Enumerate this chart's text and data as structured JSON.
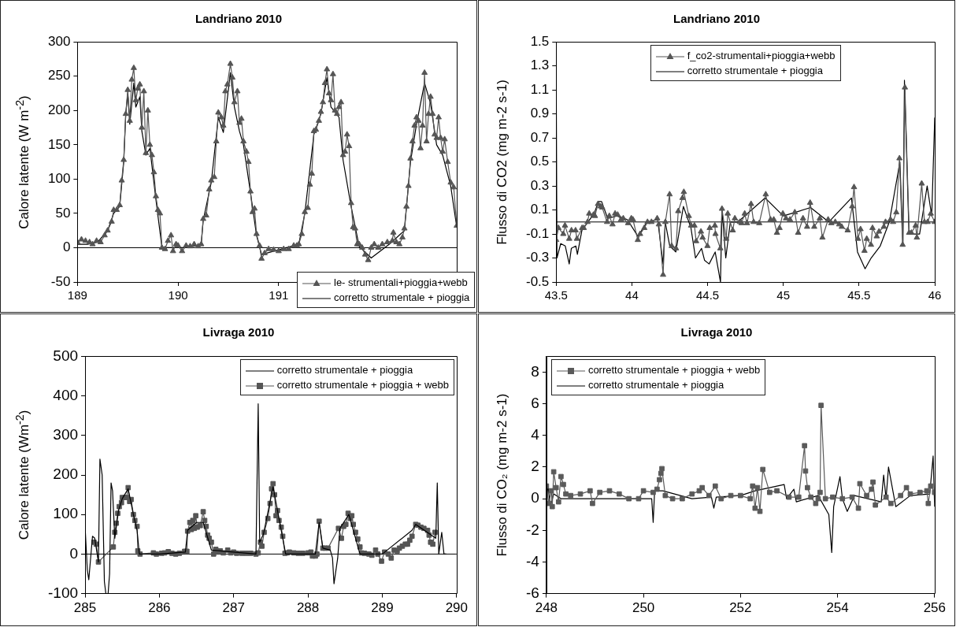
{
  "chart_data": [
    {
      "type": "line",
      "title": "Landriano 2010",
      "ylabel": "Calore latente (W m$^{-2}$)",
      "xlim": [
        189,
        192.77
      ],
      "xticks": [
        189,
        190,
        191
      ],
      "ylim": [
        -50,
        300
      ],
      "yticks": [
        -50,
        0,
        50,
        100,
        150,
        200,
        250,
        300
      ],
      "grid": false,
      "legend": "bottom right",
      "ref_lines": [
        {
          "axis": "y",
          "value": 0,
          "color": "#000000"
        }
      ],
      "series": [
        {
          "name": "le- strumentali+pioggia+webb",
          "color": "#555555",
          "marker": "triangle",
          "x": [
            189.0,
            189.04,
            189.08,
            189.12,
            189.15,
            189.19,
            189.23,
            189.27,
            189.3,
            189.34,
            189.36,
            189.39,
            189.42,
            189.44,
            189.46,
            189.48,
            189.5,
            189.52,
            189.54,
            189.56,
            189.58,
            189.6,
            189.62,
            189.64,
            189.66,
            189.68,
            189.7,
            189.72,
            189.74,
            189.76,
            189.78,
            189.8,
            189.82,
            189.84,
            189.87,
            189.9,
            189.93,
            189.95,
            189.98,
            190.0,
            190.04,
            190.08,
            190.12,
            190.16,
            190.2,
            190.23,
            190.25,
            190.28,
            190.31,
            190.33,
            190.36,
            190.38,
            190.4,
            190.43,
            190.45,
            190.47,
            190.49,
            190.52,
            190.54,
            190.56,
            190.59,
            190.61,
            190.63,
            190.65,
            190.68,
            190.7,
            190.72,
            190.74,
            190.76,
            190.78,
            190.81,
            190.83,
            190.86,
            190.9,
            190.95,
            191.0,
            191.05,
            191.1,
            191.15,
            191.18,
            191.2,
            191.23,
            191.26,
            191.29,
            191.31,
            191.33,
            191.35,
            191.37,
            191.4,
            191.42,
            191.44,
            191.46,
            191.48,
            191.5,
            191.52,
            191.54,
            191.56,
            191.58,
            191.6,
            191.62,
            191.64,
            191.66,
            191.68,
            191.7,
            191.72,
            191.74,
            191.76,
            191.78,
            191.8,
            191.83,
            191.86,
            191.89,
            191.92,
            191.95,
            191.99,
            192.03,
            192.08,
            192.13,
            192.14,
            192.17,
            192.2,
            192.23,
            192.25,
            192.27,
            192.29,
            192.31,
            192.33,
            192.35,
            192.37,
            192.39,
            192.41,
            192.43,
            192.45,
            192.47,
            192.49,
            192.51,
            192.53,
            192.55,
            192.57,
            192.59,
            192.61,
            192.63,
            192.65,
            192.68,
            192.71,
            192.74,
            192.77
          ],
          "values": [
            8,
            12,
            10,
            8,
            5,
            10,
            8,
            18,
            25,
            38,
            55,
            55,
            62,
            98,
            128,
            195,
            230,
            185,
            245,
            262,
            215,
            232,
            238,
            175,
            228,
            138,
            200,
            150,
            135,
            110,
            75,
            55,
            50,
            0,
            -2,
            10,
            18,
            -5,
            5,
            3,
            -5,
            3,
            2,
            5,
            2,
            5,
            42,
            47,
            85,
            98,
            103,
            155,
            197,
            190,
            178,
            228,
            238,
            268,
            248,
            212,
            228,
            182,
            188,
            155,
            140,
            125,
            82,
            52,
            57,
            20,
            3,
            -16,
            -8,
            -2,
            -3,
            -5,
            -2,
            -2,
            3,
            3,
            5,
            20,
            52,
            58,
            92,
            108,
            170,
            172,
            185,
            198,
            212,
            240,
            260,
            225,
            215,
            253,
            200,
            195,
            205,
            212,
            135,
            140,
            165,
            148,
            65,
            30,
            28,
            5,
            5,
            0,
            -10,
            -18,
            0,
            5,
            0,
            5,
            8,
            10,
            22,
            8,
            5,
            15,
            28,
            60,
            90,
            130,
            155,
            178,
            190,
            185,
            145,
            178,
            255,
            155,
            195,
            220,
            195,
            165,
            160,
            190,
            160,
            140,
            158,
            125,
            95,
            88,
            32
          ]
        },
        {
          "name": "corretto strumentale + pioggia",
          "color": "#000000",
          "marker": "none",
          "x": [
            189.0,
            189.1,
            189.2,
            189.3,
            189.36,
            189.42,
            189.46,
            189.48,
            189.5,
            189.52,
            189.56,
            189.58,
            189.62,
            189.64,
            189.68,
            189.72,
            189.78,
            189.84,
            189.95,
            190.1,
            190.23,
            190.25,
            190.33,
            190.4,
            190.45,
            190.52,
            190.56,
            190.61,
            190.65,
            190.72,
            190.78,
            190.83,
            191.0,
            191.2,
            191.26,
            191.35,
            191.42,
            191.48,
            191.52,
            191.56,
            191.6,
            191.64,
            191.72,
            191.8,
            191.92,
            192.1,
            192.25,
            192.31,
            192.37,
            192.45,
            192.51,
            192.57,
            192.63,
            192.71,
            192.77
          ],
          "values": [
            5,
            5,
            8,
            25,
            50,
            60,
            125,
            195,
            225,
            180,
            240,
            205,
            220,
            170,
            135,
            145,
            70,
            0,
            0,
            0,
            5,
            40,
            95,
            190,
            168,
            255,
            205,
            170,
            150,
            80,
            18,
            -10,
            -3,
            5,
            50,
            165,
            195,
            248,
            205,
            198,
            190,
            128,
            60,
            2,
            -15,
            5,
            25,
            125,
            180,
            240,
            210,
            150,
            135,
            90,
            30
          ]
        }
      ]
    },
    {
      "type": "line",
      "title": "Landriano 2010",
      "ylabel": "Flusso di CO2 (mg m-2 s-1)",
      "xlim": [
        43.5,
        46
      ],
      "xticks": [
        43.5,
        44,
        44.5,
        45,
        45.5,
        46
      ],
      "ylim": [
        -0.5,
        1.5
      ],
      "yticks": [
        -0.5,
        -0.3,
        -0.1,
        0.1,
        0.3,
        0.5,
        0.7,
        0.9,
        1.1,
        1.3,
        1.5
      ],
      "grid": false,
      "legend": "top",
      "ref_lines": [
        {
          "axis": "y",
          "value": 0,
          "color": "#000000"
        }
      ],
      "series": [
        {
          "name": "f_co2-strumentali+pioggia+webb",
          "color": "#555555",
          "marker": "triangle",
          "x": [
            43.5,
            43.515,
            43.547,
            43.558,
            43.586,
            43.601,
            43.628,
            43.637,
            43.671,
            43.682,
            43.707,
            43.718,
            43.746,
            43.756,
            43.776,
            43.793,
            43.804,
            43.836,
            43.851,
            43.872,
            43.889,
            43.906,
            43.928,
            43.943,
            43.975,
            43.996,
            44.007,
            44.039,
            44.054,
            44.082,
            44.103,
            44.129,
            44.167,
            44.178,
            44.206,
            44.221,
            44.249,
            44.263,
            44.291,
            44.306,
            44.334,
            44.343,
            44.376,
            44.391,
            44.413,
            44.424,
            44.456,
            44.467,
            44.499,
            44.514,
            44.548,
            44.552,
            44.584,
            44.595,
            44.623,
            44.633,
            44.666,
            44.68,
            44.713,
            44.724,
            44.745,
            44.76,
            44.787,
            44.804,
            44.841,
            44.884,
            44.916,
            44.937,
            44.958,
            44.975,
            44.997,
            45.018,
            45.044,
            45.076,
            45.098,
            45.13,
            45.157,
            45.177,
            45.204,
            45.241,
            45.258,
            45.296,
            45.317,
            45.343,
            45.369,
            45.386,
            45.425,
            45.455,
            45.467,
            45.493,
            45.51,
            45.536,
            45.551,
            45.579,
            45.589,
            45.617,
            45.632,
            45.664,
            45.675,
            45.708,
            45.725,
            45.746,
            45.767,
            45.788,
            45.803,
            45.831,
            45.846,
            45.874,
            45.882,
            45.914,
            45.932,
            45.953,
            45.974,
            46.0
          ],
          "values": [
            -0.15,
            -0.05,
            -0.1,
            -0.03,
            -0.14,
            -0.07,
            -0.07,
            -0.14,
            -0.05,
            -0.05,
            0,
            0.07,
            0.06,
            0.05,
            0.15,
            0.13,
            0.12,
            0,
            0.05,
            -0.02,
            0.07,
            0.06,
            0.02,
            0.03,
            -0.01,
            0.03,
            0.02,
            -0.15,
            -0.1,
            -0.05,
            0,
            0,
            0.03,
            -0.02,
            -0.44,
            0,
            0.23,
            -0.2,
            -0.22,
            0.09,
            0.2,
            0.25,
            0.05,
            -0.03,
            -0.03,
            -0.16,
            -0.08,
            -0.13,
            -0.2,
            -0.05,
            -0.03,
            -0.1,
            -0.22,
            0.11,
            -0.14,
            0.07,
            -0.07,
            0.03,
            0,
            -0.01,
            0.07,
            -0.01,
            0.15,
            0,
            -0.01,
            0.23,
            0.02,
            0.02,
            -0.09,
            -0.05,
            0.07,
            0.03,
            0.02,
            0.08,
            -0.09,
            0.03,
            -0.04,
            0.16,
            -0.04,
            0.03,
            -0.13,
            0.02,
            -0.01,
            0,
            -0.02,
            -0.04,
            -0.07,
            0.13,
            0.29,
            -0.14,
            -0.06,
            -0.24,
            -0.14,
            -0.19,
            -0.05,
            -0.12,
            -0.08,
            -0.04,
            0,
            0.02,
            0,
            0.08,
            0.53,
            -0.19,
            1.12,
            -0.09,
            -0.09,
            -0.03,
            -0.13,
            0.32,
            0,
            0,
            0.07,
            0
          ]
        },
        {
          "name": "corretto strumentale + pioggia",
          "color": "#000000",
          "marker": "none",
          "x": [
            43.5,
            43.505,
            43.53,
            43.56,
            43.586,
            43.6,
            43.63,
            43.64,
            43.67,
            43.71,
            43.75,
            43.78,
            43.8,
            43.84,
            43.9,
            43.97,
            44.04,
            44.1,
            44.17,
            44.206,
            44.22,
            44.25,
            44.29,
            44.34,
            44.39,
            44.42,
            44.46,
            44.48,
            44.51,
            44.55,
            44.585,
            44.595,
            44.62,
            44.65,
            44.7,
            44.88,
            45.0,
            45.18,
            45.3,
            45.45,
            45.49,
            45.54,
            45.58,
            45.64,
            45.7,
            45.77,
            45.79,
            45.8,
            45.83,
            45.9,
            45.95,
            45.98,
            46.0
          ],
          "values": [
            1.25,
            -0.3,
            -0.18,
            -0.2,
            -0.35,
            -0.22,
            -0.2,
            -0.27,
            -0.07,
            0,
            0.07,
            0.17,
            0.17,
            0.03,
            0.05,
            0.02,
            -0.12,
            0,
            0.02,
            -0.35,
            0,
            -0.2,
            -0.25,
            0.13,
            -0.05,
            -0.3,
            -0.22,
            -0.32,
            -0.35,
            -0.25,
            -0.5,
            0.1,
            -0.3,
            0,
            0,
            0.2,
            0.05,
            0.12,
            0,
            0.2,
            -0.25,
            -0.39,
            -0.3,
            -0.2,
            0,
            0.5,
            -0.2,
            1.18,
            -0.1,
            -0.1,
            0.3,
            0.05,
            0.87
          ]
        }
      ]
    },
    {
      "type": "line",
      "title": "Livraga 2010",
      "ylabel": "Calore latente (Wm$^{-2}$)",
      "xlim": [
        285,
        290
      ],
      "xticks": [
        285,
        286,
        287,
        288,
        289,
        290
      ],
      "ylim": [
        -100,
        500
      ],
      "yticks": [
        -100,
        0,
        100,
        200,
        300,
        400,
        500
      ],
      "grid": false,
      "legend": "top right",
      "ref_lines": [
        {
          "axis": "y",
          "value": 0,
          "color": "#000000"
        }
      ],
      "series": [
        {
          "name": "corretto strumentale + pioggia",
          "color": "#000000",
          "marker": "none",
          "x": [
            285.0,
            285.03,
            285.05,
            285.1,
            285.13,
            285.18,
            285.2,
            285.23,
            285.26,
            285.28,
            285.31,
            285.33,
            285.35,
            285.37,
            285.4,
            285.45,
            285.5,
            285.58,
            285.65,
            285.7,
            285.73,
            285.76,
            286.0,
            286.35,
            286.38,
            286.5,
            286.59,
            286.7,
            287.0,
            287.3,
            287.33,
            287.35,
            287.4,
            287.53,
            287.66,
            287.7,
            288.1,
            288.15,
            288.2,
            288.3,
            288.33,
            288.35,
            288.4,
            288.43,
            288.55,
            288.7,
            289.0,
            289.4,
            289.45,
            289.72,
            289.74,
            289.76,
            289.8,
            289.83,
            289.86
          ],
          "values": [
            70,
            -40,
            -65,
            45,
            40,
            -20,
            240,
            200,
            -70,
            -100,
            -100,
            -50,
            180,
            160,
            40,
            110,
            140,
            165,
            100,
            60,
            0,
            0,
            0,
            5,
            60,
            80,
            80,
            10,
            5,
            0,
            380,
            30,
            50,
            170,
            40,
            0,
            0,
            80,
            15,
            10,
            -10,
            -75,
            -10,
            65,
            100,
            0,
            0,
            60,
            75,
            40,
            180,
            0,
            55,
            0,
            0
          ]
        },
        {
          "name": "corretto strumentale + pioggia + webb",
          "color": "#555555",
          "marker": "square",
          "x": [
            285.12,
            285.15,
            285.18,
            285.38,
            285.4,
            285.42,
            285.44,
            285.46,
            285.49,
            285.5,
            285.54,
            285.56,
            285.58,
            285.6,
            285.62,
            285.65,
            285.67,
            285.7,
            285.71,
            285.74,
            285.92,
            285.96,
            286.03,
            286.07,
            286.12,
            286.17,
            286.22,
            286.27,
            286.34,
            286.37,
            286.38,
            286.41,
            286.43,
            286.45,
            286.47,
            286.49,
            286.51,
            286.55,
            286.59,
            286.61,
            286.63,
            286.65,
            286.67,
            286.7,
            286.73,
            286.76,
            286.79,
            286.82,
            286.86,
            286.92,
            286.96,
            287.0,
            287.04,
            287.11,
            287.17,
            287.23,
            287.3,
            287.33,
            287.36,
            287.38,
            287.41,
            287.46,
            287.49,
            287.51,
            287.53,
            287.55,
            287.57,
            287.59,
            287.61,
            287.64,
            287.66,
            287.69,
            287.72,
            287.75,
            287.81,
            287.87,
            287.93,
            288.0,
            288.04,
            288.06,
            288.1,
            288.12,
            288.15,
            288.2,
            288.23,
            288.27,
            288.41,
            288.45,
            288.48,
            288.51,
            288.54,
            288.57,
            288.59,
            288.61,
            288.64,
            288.67,
            288.7,
            288.72,
            288.76,
            288.82,
            288.86,
            288.91,
            288.94,
            288.99,
            289.03,
            289.08,
            289.12,
            289.16,
            289.2,
            289.23,
            289.27,
            289.31,
            289.34,
            289.37,
            289.4,
            289.45,
            289.48,
            289.52,
            289.56,
            289.61,
            289.63,
            289.65,
            289.68,
            289.71
          ],
          "values": [
            30,
            25,
            -20,
            18,
            55,
            78,
            103,
            120,
            130,
            143,
            143,
            143,
            168,
            133,
            138,
            100,
            85,
            70,
            8,
            0,
            3,
            0,
            2,
            3,
            6,
            2,
            0,
            2,
            7,
            7,
            58,
            80,
            62,
            85,
            65,
            97,
            68,
            72,
            107,
            85,
            70,
            48,
            40,
            30,
            0,
            12,
            5,
            8,
            3,
            10,
            3,
            5,
            2,
            2,
            2,
            2,
            0,
            3,
            30,
            20,
            55,
            90,
            128,
            165,
            178,
            150,
            97,
            110,
            85,
            68,
            45,
            2,
            3,
            5,
            3,
            2,
            2,
            3,
            5,
            -5,
            -5,
            0,
            83,
            15,
            15,
            15,
            65,
            40,
            70,
            75,
            103,
            90,
            97,
            75,
            55,
            38,
            18,
            3,
            2,
            0,
            -3,
            10,
            0,
            -18,
            5,
            0,
            -10,
            10,
            8,
            15,
            20,
            25,
            25,
            35,
            45,
            75,
            73,
            68,
            65,
            60,
            48,
            30,
            25,
            55
          ]
        }
      ]
    },
    {
      "type": "line",
      "title": "Livraga 2010",
      "ylabel": "Flusso di CO₂ (mg m-2 s-1)",
      "xlim": [
        248,
        256
      ],
      "xticks": [
        248,
        250,
        252,
        254,
        256
      ],
      "ylim": [
        -6,
        9
      ],
      "yticks": [
        -6,
        -4,
        -2,
        0,
        2,
        4,
        6,
        8
      ],
      "grid": false,
      "legend": "top left",
      "series": [
        {
          "name": "corretto strumentale + pioggia + webb",
          "color": "#5a5a5a",
          "marker": "square",
          "x": [
            248.0,
            248.05,
            248.1,
            248.12,
            248.15,
            248.2,
            248.25,
            248.3,
            248.35,
            248.4,
            248.5,
            248.7,
            248.9,
            248.95,
            249.1,
            249.3,
            249.5,
            249.7,
            249.9,
            250.0,
            250.2,
            250.28,
            250.33,
            250.36,
            250.38,
            250.45,
            250.6,
            250.8,
            251.0,
            251.15,
            251.21,
            251.35,
            251.48,
            251.6,
            251.8,
            252.0,
            252.2,
            252.25,
            252.3,
            252.35,
            252.4,
            252.46,
            252.6,
            252.75,
            253.0,
            253.2,
            253.32,
            253.34,
            253.38,
            253.45,
            253.55,
            253.6,
            253.64,
            253.66,
            253.75,
            253.9,
            254.1,
            254.3,
            254.43,
            254.46,
            254.6,
            254.7,
            254.73,
            254.78,
            255.0,
            255.1,
            255.3,
            255.42,
            255.5,
            255.7,
            255.84,
            255.87,
            255.92,
            256.0
          ],
          "values": [
            0.8,
            -0.3,
            0.5,
            -0.5,
            1.7,
            0.7,
            -0.2,
            1.4,
            0.9,
            0.3,
            0.2,
            0.3,
            0.5,
            -0.3,
            0.4,
            0.5,
            0.3,
            0,
            0,
            0.5,
            0.4,
            0.6,
            1.2,
            1.6,
            1.9,
            0.2,
            0,
            0,
            0.3,
            0.5,
            0.7,
            0.2,
            0.8,
            0,
            0.2,
            0.2,
            0,
            0.8,
            -0.6,
            0.7,
            -0.8,
            1.85,
            0.4,
            0.5,
            0.1,
            0.1,
            3.35,
            1.75,
            0.7,
            0.1,
            -0.3,
            0,
            0.4,
            5.9,
            0,
            0.1,
            0,
            0.1,
            -0.6,
            0.95,
            0.2,
            0.6,
            1.05,
            -0.4,
            0.1,
            -0.3,
            0.2,
            0.7,
            0.3,
            0.4,
            0.5,
            -0.3,
            0.8,
            0.4
          ]
        },
        {
          "name": "corretto strumentale + pioggia",
          "color": "#000000",
          "marker": "none",
          "x": [
            248.0,
            248.03,
            248.08,
            248.15,
            248.3,
            249.0,
            250.0,
            250.17,
            250.2,
            250.23,
            250.4,
            251.0,
            251.4,
            251.45,
            251.5,
            252.0,
            252.3,
            252.9,
            252.95,
            253.1,
            253.15,
            253.6,
            253.82,
            253.88,
            253.92,
            254.05,
            254.1,
            254.2,
            254.35,
            254.9,
            254.95,
            255.0,
            255.05,
            255.2,
            255.5,
            255.9,
            255.97,
            256.0
          ],
          "values": [
            -0.8,
            0.9,
            -0.5,
            0.3,
            0,
            0,
            0,
            0,
            -1.5,
            0.5,
            0.5,
            0,
            0.1,
            -0.6,
            0.1,
            0.2,
            0.5,
            0.9,
            0,
            0.6,
            -0.2,
            0.2,
            -1,
            -3.4,
            -0.5,
            1.4,
            0,
            -0.8,
            0.2,
            -0.2,
            1.5,
            0,
            2,
            -0.5,
            0.2,
            0.3,
            2.7,
            -0.5
          ]
        }
      ]
    }
  ]
}
